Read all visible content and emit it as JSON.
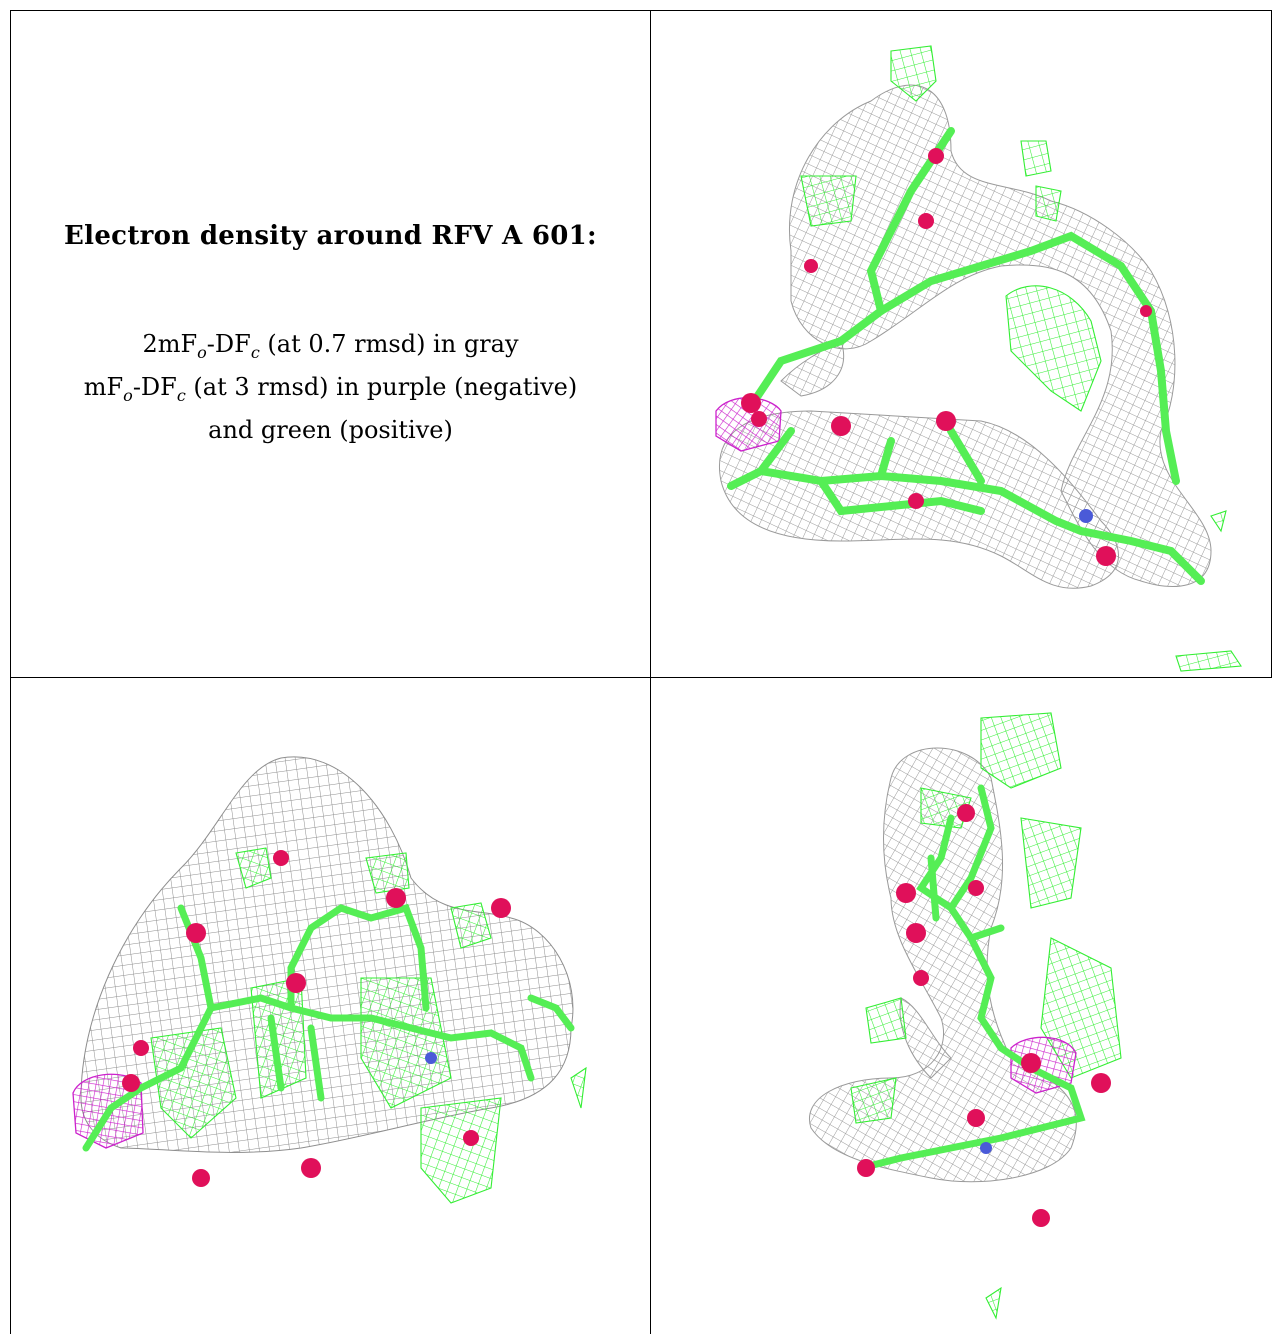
{
  "panel_text": {
    "title": "Electron density around RFV A 601:",
    "line1": {
      "prefix": "2mF",
      "sub1": "o",
      "mid": "-DF",
      "sub2": "c",
      "suffix": " (at 0.7 rmsd) in gray"
    },
    "line2": {
      "prefix": "mF",
      "sub1": "o",
      "mid": "-DF",
      "sub2": "c",
      "suffix": " (at 3 rmsd) in purple (negative)"
    },
    "line3": "and green (positive)"
  },
  "colors": {
    "mesh_gray": "#9a9a9a",
    "mesh_green": "#33ee33",
    "mesh_purple": "#cc22cc",
    "stick_green": "#55ee55",
    "oxygen": "#e0105a",
    "nitrogen": "#4a5ad8"
  },
  "panels": [
    "text-legend",
    "density-view-top",
    "density-view-side",
    "density-view-end"
  ]
}
